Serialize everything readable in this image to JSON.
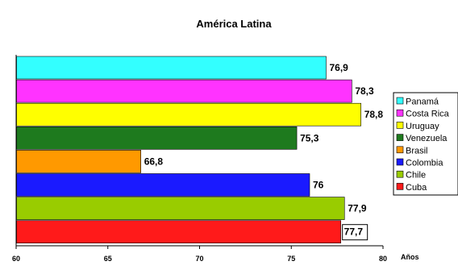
{
  "chart_data": {
    "type": "bar",
    "orientation": "horizontal",
    "title": "América Latina",
    "xlabel": "Años",
    "ylabel": "",
    "xlim": [
      60,
      80
    ],
    "xticks": [
      "60",
      "65",
      "70",
      "75",
      "80"
    ],
    "categories": [
      "Panamá",
      "Costa Rica",
      "Uruguay",
      "Venezuela",
      "Brasil",
      "Colombia",
      "Chile",
      "Cuba"
    ],
    "values": [
      76.9,
      78.3,
      78.8,
      75.3,
      66.8,
      76.0,
      77.9,
      77.7
    ],
    "value_labels": [
      "76,9",
      "78,3",
      "78,8",
      "75,3",
      "66,8",
      "76",
      "77,9",
      "77,7"
    ],
    "colors": [
      "#33ffff",
      "#ff33ff",
      "#ffff00",
      "#1e7a1e",
      "#ff9900",
      "#1a1aff",
      "#99cc00",
      "#ff1a1a"
    ],
    "grid": false,
    "legend_position": "right"
  }
}
